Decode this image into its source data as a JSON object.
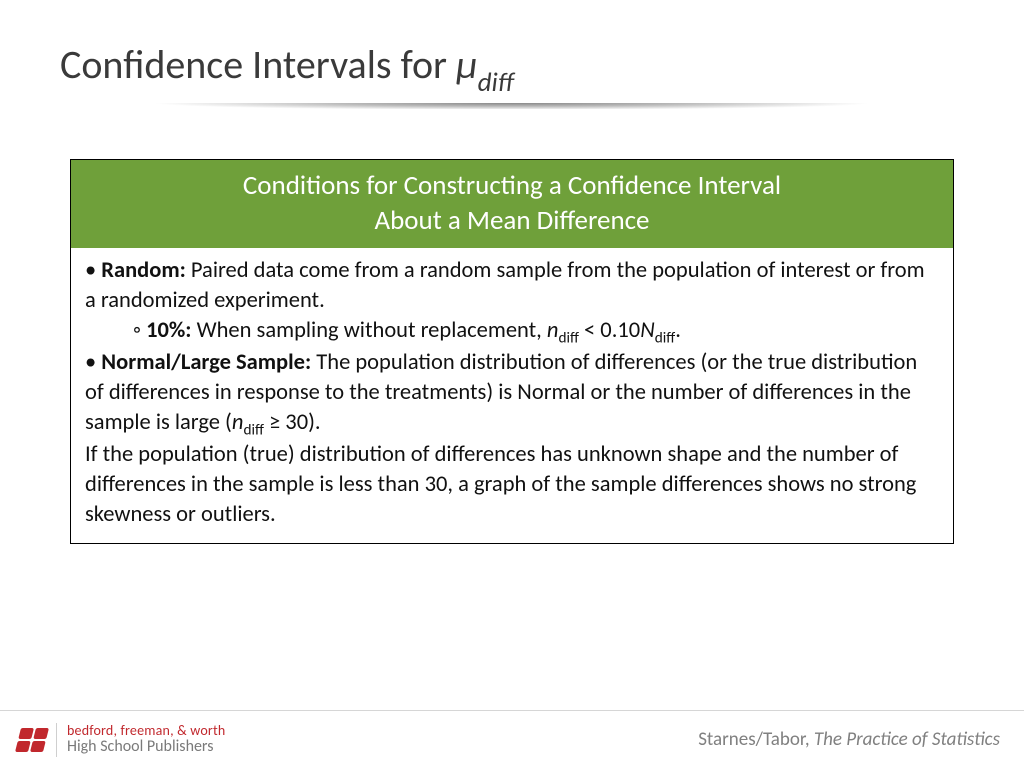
{
  "colors": {
    "header_bg": "#6fa03a",
    "header_text": "#ffffff",
    "title_text": "#3a3a3a",
    "body_text": "#111111",
    "logo_red": "#c1282d",
    "footer_border": "#d6d6d6",
    "credit_text": "#808080"
  },
  "title": {
    "prefix": "Confidence Intervals for ",
    "symbol": "μ",
    "subscript": "diff"
  },
  "box": {
    "header_line1": "Conditions for Constructing a Confidence Interval",
    "header_line2": "About a Mean Difference",
    "random_label": "Random:",
    "random_text": " Paired data come from a random sample from the population of interest or from a randomized experiment.",
    "tenpct_label": "10%:",
    "tenpct_pre": " When sampling without replacement, ",
    "tenpct_n": "n",
    "tenpct_nsub": "diff",
    "tenpct_mid": " < 0.10",
    "tenpct_N": "N",
    "tenpct_Nsub": "diff",
    "tenpct_post": ".",
    "normal_label": "Normal/Large Sample:",
    "normal_text1": " The population distribution of differences (or the true distribution of differences in response to the treatments) is Normal or the number of differences in the sample is large (",
    "normal_n": "n",
    "normal_nsub": "diff",
    "normal_text2": " ≥ 30).",
    "normal_para2": "If the population (true) distribution of differences has unknown shape and the number of differences in the sample is less than 30, a graph of the sample differences shows no strong skewness or outliers."
  },
  "footer": {
    "publisher_line1": "bedford, freeman, & worth",
    "publisher_line2": "High School Publishers",
    "credit_authors": "Starnes/Tabor, ",
    "credit_title": "The Practice of Statistics"
  }
}
